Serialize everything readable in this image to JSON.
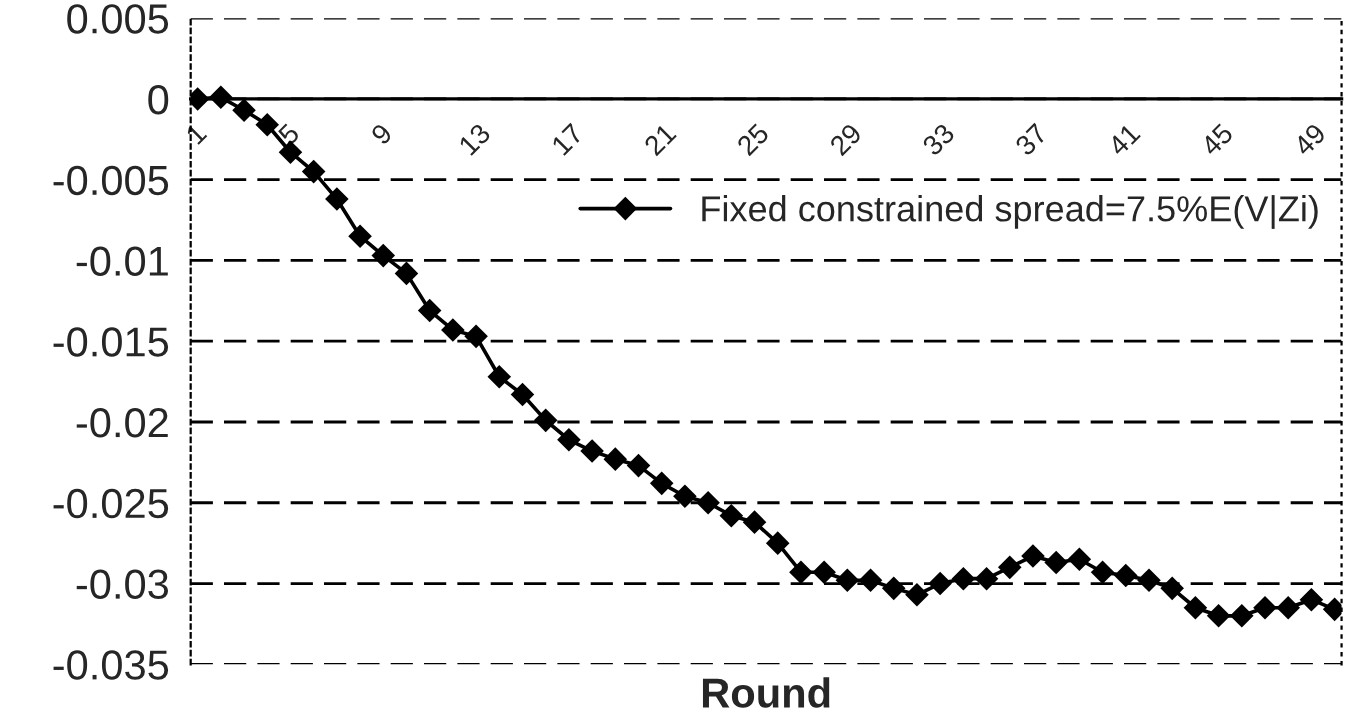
{
  "chart_data": {
    "type": "line",
    "xlabel": "Round",
    "categories": [
      "1",
      null,
      null,
      null,
      "5",
      null,
      null,
      null,
      "9",
      null,
      null,
      null,
      "13",
      null,
      null,
      null,
      "17",
      null,
      null,
      null,
      "21",
      null,
      null,
      null,
      "25",
      null,
      null,
      null,
      "29",
      null,
      null,
      null,
      "33",
      null,
      null,
      null,
      "37",
      null,
      null,
      null,
      "41",
      null,
      null,
      null,
      "45",
      null,
      null,
      null,
      "49",
      null
    ],
    "series": [
      {
        "name": "Fixed constrained spread=7.5%E(V|Zi)",
        "color": "#000000",
        "values": [
          0,
          0.0001,
          -0.0007,
          -0.0016,
          -0.0033,
          -0.0045,
          -0.0062,
          -0.0085,
          -0.0097,
          -0.0108,
          -0.0131,
          -0.0143,
          -0.0147,
          -0.0172,
          -0.0183,
          -0.0199,
          -0.0211,
          -0.0218,
          -0.0223,
          -0.0227,
          -0.0238,
          -0.0246,
          -0.025,
          -0.0258,
          -0.0262,
          -0.0275,
          -0.0293,
          -0.0293,
          -0.0298,
          -0.0298,
          -0.0303,
          -0.0307,
          -0.03,
          -0.0297,
          -0.0297,
          -0.029,
          -0.0283,
          -0.0287,
          -0.0285,
          -0.0293,
          -0.0295,
          -0.0298,
          -0.0303,
          -0.0315,
          -0.032,
          -0.032,
          -0.0315,
          -0.0315,
          -0.031,
          -0.0316
        ]
      }
    ],
    "ylim": [
      -0.035,
      0.005
    ],
    "yticks": [
      0.005,
      0,
      -0.005,
      -0.01,
      -0.015,
      -0.02,
      -0.025,
      -0.03,
      -0.035
    ],
    "grid": "y",
    "legend": "right",
    "marker": "diamond",
    "line_style": "solid"
  }
}
